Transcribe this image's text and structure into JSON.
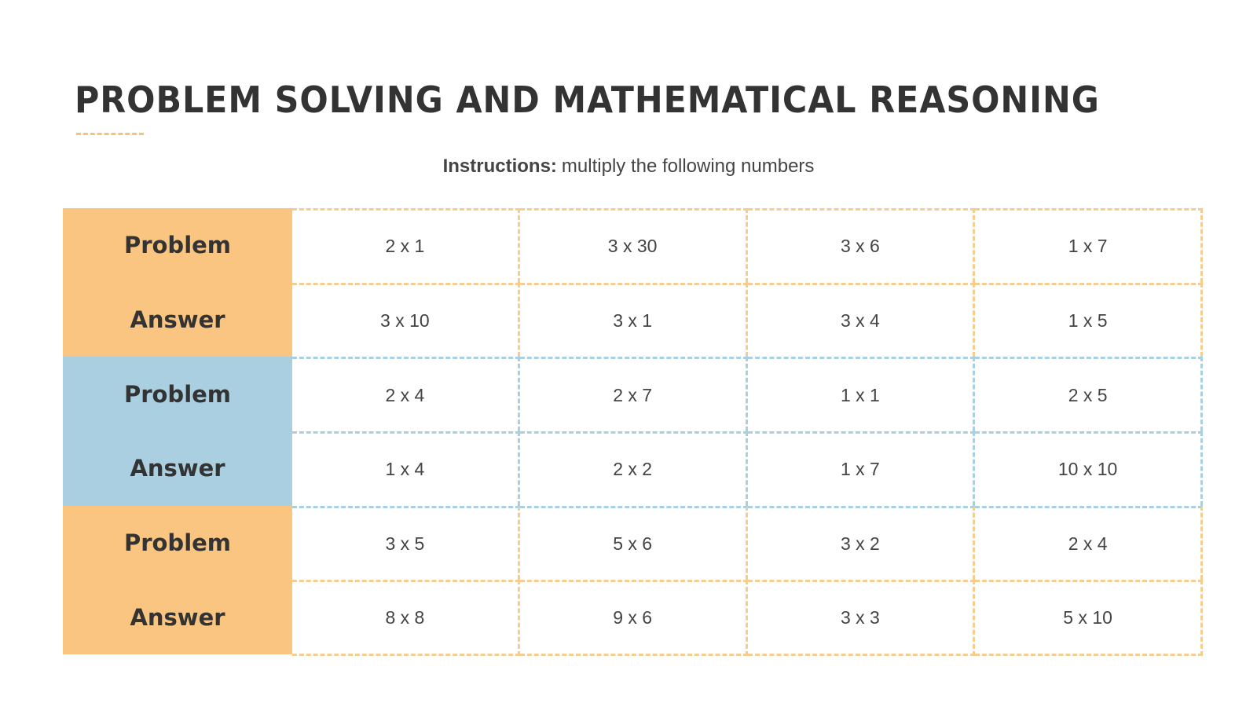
{
  "header": {
    "title": "PROBLEM SOLVING AND MATHEMATICAL REASONING"
  },
  "instructions": {
    "label": "Instructions:",
    "text": "multiply the following numbers"
  },
  "table": {
    "rows": [
      {
        "label": "Problem",
        "cells": [
          "2 x 1",
          "3 x 30",
          "3 x 6",
          "1 x 7"
        ]
      },
      {
        "label": "Answer",
        "cells": [
          "3 x 10",
          "3 x 1",
          "3 x 4",
          "1 x 5"
        ]
      },
      {
        "label": "Problem",
        "cells": [
          "2 x 4",
          "2 x 7",
          "1 x 1",
          "2 x 5"
        ]
      },
      {
        "label": "Answer",
        "cells": [
          "1 x 4",
          "2 x 2",
          "1 x 7",
          "10 x 10"
        ]
      },
      {
        "label": "Problem",
        "cells": [
          "3 x 5",
          "5 x 6",
          "3 x 2",
          "2 x 4"
        ]
      },
      {
        "label": "Answer",
        "cells": [
          "8 x 8",
          "9 x 6",
          "3 x 3",
          "5 x 10"
        ]
      }
    ]
  }
}
